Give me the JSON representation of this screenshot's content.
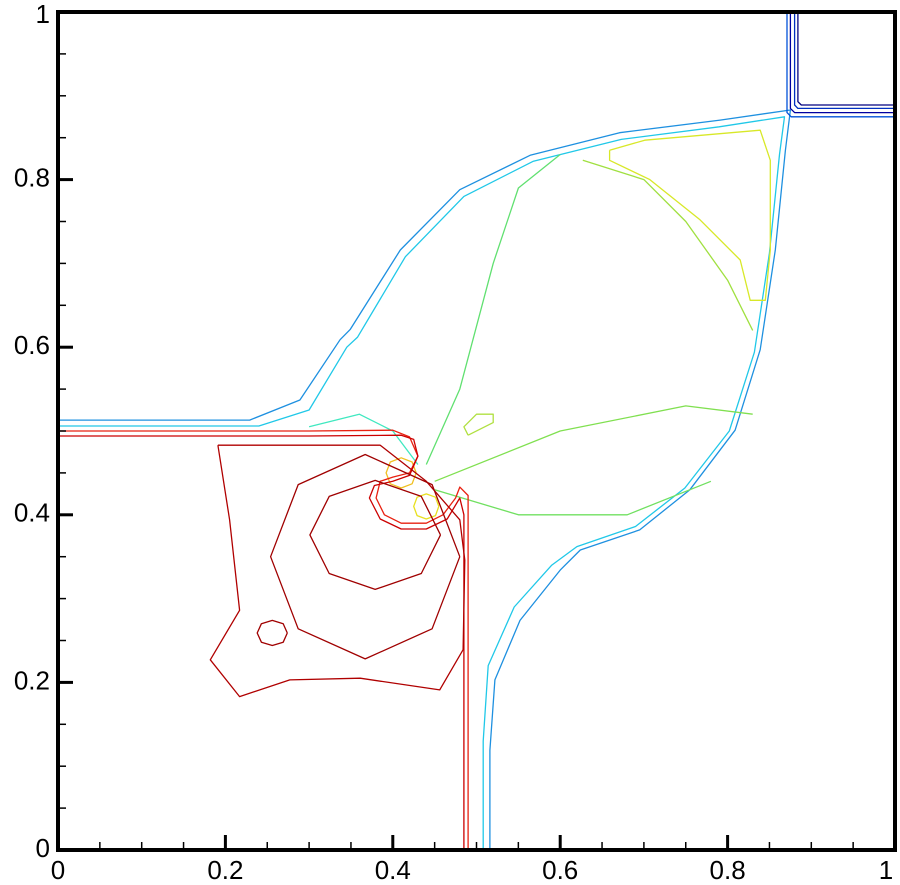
{
  "chart_data": {
    "type": "contour",
    "xlim": [
      0,
      1
    ],
    "ylim": [
      0,
      1
    ],
    "xticks": [
      0,
      0.2,
      0.4,
      0.6,
      0.8,
      1
    ],
    "yticks": [
      0,
      0.2,
      0.4,
      0.6,
      0.8,
      1
    ],
    "xminorticks": [
      0.05,
      0.1,
      0.15,
      0.25,
      0.3,
      0.35,
      0.45,
      0.5,
      0.55,
      0.65,
      0.7,
      0.75,
      0.85,
      0.9,
      0.95
    ],
    "yminorticks": [
      0.05,
      0.1,
      0.15,
      0.25,
      0.3,
      0.35,
      0.45,
      0.5,
      0.55,
      0.65,
      0.7,
      0.75,
      0.85,
      0.9,
      0.95
    ],
    "lines": [
      {
        "color": "#1e90e0",
        "x": [
          0,
          0.229,
          0.289,
          0.337,
          0.349,
          0.409,
          0.48,
          0.564,
          0.671,
          0.791,
          0.875,
          0.869,
          0.857,
          0.839,
          0.809,
          0.755,
          0.695,
          0.624,
          0.6,
          0.552,
          0.522,
          0.516,
          0.516
        ],
        "y": [
          0.513,
          0.513,
          0.537,
          0.609,
          0.621,
          0.716,
          0.788,
          0.829,
          0.856,
          0.871,
          0.883,
          0.835,
          0.716,
          0.597,
          0.501,
          0.43,
          0.382,
          0.358,
          0.334,
          0.274,
          0.203,
          0.119,
          0
        ]
      },
      {
        "color": "#20c8e8",
        "x": [
          0,
          0.24,
          0.3,
          0.345,
          0.358,
          0.415,
          0.485,
          0.568,
          0.673,
          0.79,
          0.868,
          0.862,
          0.85,
          0.832,
          0.802,
          0.749,
          0.69,
          0.62,
          0.59,
          0.545,
          0.514,
          0.508,
          0.508
        ],
        "y": [
          0.506,
          0.506,
          0.525,
          0.6,
          0.612,
          0.708,
          0.78,
          0.822,
          0.848,
          0.863,
          0.875,
          0.83,
          0.712,
          0.594,
          0.5,
          0.432,
          0.386,
          0.362,
          0.34,
          0.29,
          0.22,
          0.13,
          0
        ]
      },
      {
        "color": "#40e8c0",
        "x": [
          0.3,
          0.36,
          0.4,
          0.43
        ],
        "y": [
          0.505,
          0.52,
          0.5,
          0.46
        ]
      },
      {
        "color": "#60e070",
        "x": [
          0.44,
          0.48,
          0.52,
          0.55,
          0.6
        ],
        "y": [
          0.46,
          0.55,
          0.7,
          0.79,
          0.83
        ]
      },
      {
        "color": "#80e050",
        "x": [
          0.45,
          0.6,
          0.75,
          0.83
        ],
        "y": [
          0.44,
          0.5,
          0.53,
          0.52
        ]
      },
      {
        "color": "#70e060",
        "x": [
          0.45,
          0.55,
          0.68,
          0.78
        ],
        "y": [
          0.43,
          0.4,
          0.4,
          0.44
        ]
      },
      {
        "color": "#a0e040",
        "x": [
          0.627,
          0.7,
          0.75,
          0.8,
          0.83
        ],
        "y": [
          0.823,
          0.8,
          0.75,
          0.68,
          0.62
        ]
      },
      {
        "color": "#d8e828",
        "x": [
          0.659,
          0.701,
          0.839,
          0.851,
          0.851,
          0.845,
          0.827,
          0.815,
          0.767,
          0.707,
          0.659,
          0.659
        ],
        "y": [
          0.835,
          0.847,
          0.859,
          0.823,
          0.716,
          0.656,
          0.656,
          0.704,
          0.752,
          0.8,
          0.823,
          0.835
        ]
      },
      {
        "color": "#b0e040",
        "x": [
          0.49,
          0.52,
          0.52,
          0.5,
          0.485,
          0.49
        ],
        "y": [
          0.495,
          0.51,
          0.52,
          0.52,
          0.505,
          0.495
        ]
      },
      {
        "color": "#f0c020",
        "x": [
          0.428,
          0.423,
          0.41,
          0.397,
          0.392,
          0.397,
          0.41,
          0.423,
          0.428
        ],
        "y": [
          0.45,
          0.463,
          0.468,
          0.463,
          0.45,
          0.437,
          0.432,
          0.437,
          0.45
        ]
      },
      {
        "color": "#e8e020",
        "x": [
          0.455,
          0.451,
          0.44,
          0.429,
          0.425,
          0.429,
          0.44,
          0.451,
          0.455
        ],
        "y": [
          0.41,
          0.421,
          0.425,
          0.421,
          0.41,
          0.399,
          0.395,
          0.399,
          0.41
        ]
      },
      {
        "color": "#e82010",
        "x": [
          0,
          0.3,
          0.4,
          0.42,
          0.43,
          0.42,
          0.4,
          0.385,
          0.38,
          0.39,
          0.41,
          0.44,
          0.46,
          0.475,
          0.48,
          0.49,
          0.49,
          0.49,
          0.49
        ],
        "y": [
          0.5,
          0.5,
          0.501,
          0.493,
          0.47,
          0.45,
          0.445,
          0.44,
          0.42,
          0.4,
          0.39,
          0.39,
          0.4,
          0.42,
          0.433,
          0.423,
          0.38,
          0.2,
          0
        ]
      },
      {
        "color": "#cc0000",
        "x": [
          0,
          0.3,
          0.41,
          0.425,
          0.43,
          0.42,
          0.4,
          0.378,
          0.372,
          0.385,
          0.41,
          0.44,
          0.465,
          0.48,
          0.485,
          0.485,
          0.485
        ],
        "y": [
          0.494,
          0.494,
          0.495,
          0.49,
          0.47,
          0.447,
          0.44,
          0.435,
          0.42,
          0.395,
          0.383,
          0.383,
          0.395,
          0.42,
          0.4,
          0.2,
          0
        ]
      },
      {
        "color": "#b00000",
        "x": [
          0.191,
          0.205,
          0.217,
          0.182,
          0.217,
          0.277,
          0.361,
          0.456,
          0.484,
          0.486,
          0.48,
          0.44,
          0.385,
          0.191
        ],
        "y": [
          0.483,
          0.394,
          0.286,
          0.227,
          0.183,
          0.203,
          0.205,
          0.191,
          0.239,
          0.346,
          0.394,
          0.44,
          0.483,
          0.483
        ]
      },
      {
        "color": "#a00000",
        "x": [
          0.48,
          0.447,
          0.367,
          0.287,
          0.254,
          0.287,
          0.367,
          0.447,
          0.48
        ],
        "y": [
          0.35,
          0.436,
          0.472,
          0.436,
          0.35,
          0.264,
          0.228,
          0.264,
          0.35
        ]
      },
      {
        "color": "#a00000",
        "x": [
          0.457,
          0.434,
          0.379,
          0.324,
          0.301,
          0.324,
          0.379,
          0.434,
          0.457
        ],
        "y": [
          0.376,
          0.422,
          0.441,
          0.422,
          0.376,
          0.33,
          0.311,
          0.33,
          0.376
        ]
      },
      {
        "color": "#a00000",
        "x": [
          0.274,
          0.269,
          0.256,
          0.243,
          0.238,
          0.243,
          0.256,
          0.269,
          0.274
        ],
        "y": [
          0.259,
          0.27,
          0.274,
          0.27,
          0.259,
          0.248,
          0.244,
          0.248,
          0.259
        ]
      },
      {
        "color": "#0000a0",
        "x": [
          0.875,
          0.875,
          0.88,
          1
        ],
        "y": [
          1,
          0.885,
          0.88,
          0.88
        ]
      },
      {
        "color": "#0030c0",
        "x": [
          0.88,
          0.88,
          0.884,
          1
        ],
        "y": [
          1,
          0.889,
          0.885,
          0.885
        ]
      },
      {
        "color": "#0050d8",
        "x": [
          0.871,
          0.871,
          0.876,
          1
        ],
        "y": [
          1,
          0.88,
          0.875,
          0.875
        ]
      },
      {
        "color": "#000080",
        "x": [
          0.884,
          0.884,
          0.888,
          1
        ],
        "y": [
          1,
          0.893,
          0.889,
          0.889
        ]
      }
    ]
  }
}
